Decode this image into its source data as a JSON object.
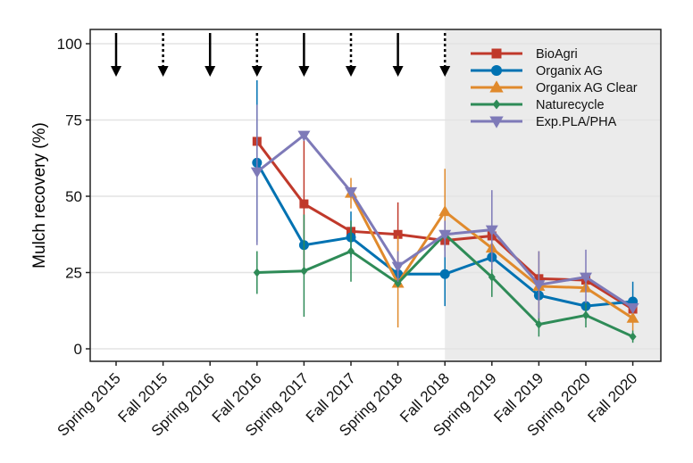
{
  "chart_data": {
    "type": "line",
    "title": "",
    "xlabel": "",
    "ylabel": "Mulch recovery (%)",
    "ylim": [
      -3,
      104
    ],
    "yticks": [
      0,
      25,
      50,
      75,
      100
    ],
    "grid": "horizontal",
    "legend_position": "top-right",
    "categories": [
      "Spring 2015",
      "Fall 2015",
      "Spring 2016",
      "Fall 2016",
      "Spring 2017",
      "Fall 2017",
      "Spring 2018",
      "Fall 2018",
      "Spring 2019",
      "Fall 2019",
      "Spring 2020",
      "Fall 2020"
    ],
    "shaded_from": "Fall 2018",
    "shade_color": "#ebebeb",
    "arrows": [
      {
        "category": "Spring 2015",
        "style": "solid"
      },
      {
        "category": "Fall 2015",
        "style": "dotted"
      },
      {
        "category": "Spring 2016",
        "style": "solid"
      },
      {
        "category": "Fall 2016",
        "style": "dotted"
      },
      {
        "category": "Spring 2017",
        "style": "solid"
      },
      {
        "category": "Fall 2017",
        "style": "dotted"
      },
      {
        "category": "Spring 2018",
        "style": "solid"
      },
      {
        "category": "Fall 2018",
        "style": "dotted"
      }
    ],
    "series": [
      {
        "name": "BioAgri",
        "color": "#c0392b",
        "marker": "square",
        "values": [
          null,
          null,
          null,
          68,
          47.5,
          38.5,
          37.5,
          35.5,
          37,
          23,
          22.5,
          13
        ],
        "err": [
          null,
          null,
          null,
          null,
          [
            25,
            70
          ],
          null,
          [
            27,
            48
          ],
          null,
          null,
          null,
          null,
          null
        ]
      },
      {
        "name": "Organix AG",
        "color": "#0072b2",
        "marker": "circle",
        "values": [
          null,
          null,
          null,
          61,
          34,
          36.5,
          24.5,
          24.5,
          30,
          17.5,
          14,
          15.5
        ],
        "err": [
          null,
          null,
          null,
          [
            35,
            88
          ],
          null,
          [
            30,
            45
          ],
          null,
          [
            14,
            34
          ],
          null,
          null,
          null,
          [
            10,
            22
          ]
        ]
      },
      {
        "name": "Organix AG Clear",
        "color": "#e08a2c",
        "marker": "triangle-up",
        "values": [
          null,
          null,
          null,
          null,
          null,
          51,
          21.5,
          45,
          33,
          20.5,
          20,
          10
        ],
        "err": [
          null,
          null,
          null,
          null,
          null,
          [
            46,
            56
          ],
          [
            7,
            37
          ],
          [
            32,
            59
          ],
          null,
          [
            9,
            32
          ],
          null,
          [
            6,
            14
          ]
        ]
      },
      {
        "name": "Naturecycle",
        "color": "#2e8b57",
        "marker": "diamond",
        "values": [
          null,
          null,
          null,
          25,
          25.5,
          32,
          21.5,
          37.5,
          23.5,
          8,
          11,
          4
        ],
        "err": [
          null,
          null,
          null,
          [
            18,
            32
          ],
          [
            10.5,
            44
          ],
          [
            22,
            42
          ],
          null,
          null,
          [
            17,
            30
          ],
          [
            4,
            12
          ],
          [
            7,
            15
          ],
          [
            2,
            6
          ]
        ]
      },
      {
        "name": "Exp.PLA/PHA",
        "color": "#7e7ab8",
        "marker": "triangle-down",
        "values": [
          null,
          null,
          null,
          58,
          70,
          51.5,
          27,
          37.5,
          39,
          21,
          23.5,
          13.5
        ],
        "err": [
          null,
          null,
          null,
          [
            34,
            80
          ],
          null,
          null,
          [
            22,
            32
          ],
          [
            30,
            42
          ],
          [
            26,
            52
          ],
          [
            10,
            32
          ],
          [
            15,
            32.5
          ],
          null
        ]
      }
    ]
  }
}
